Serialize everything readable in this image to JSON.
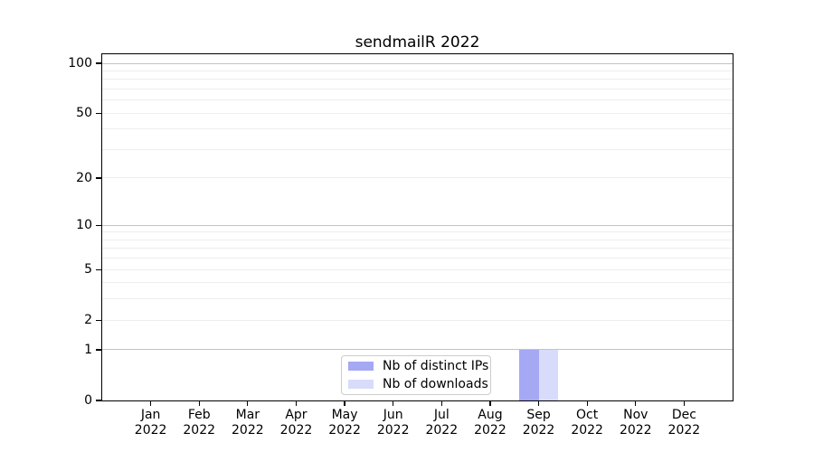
{
  "chart_data": {
    "type": "bar",
    "title": "sendmailR 2022",
    "year_label": "2022",
    "categories": [
      "Jan 2022",
      "Feb 2022",
      "Mar 2022",
      "Apr 2022",
      "May 2022",
      "Jun 2022",
      "Jul 2022",
      "Aug 2022",
      "Sep 2022",
      "Oct 2022",
      "Nov 2022",
      "Dec 2022"
    ],
    "month_labels": [
      "Jan",
      "Feb",
      "Mar",
      "Apr",
      "May",
      "Jun",
      "Jul",
      "Aug",
      "Sep",
      "Oct",
      "Nov",
      "Dec"
    ],
    "series": [
      {
        "name": "Nb of distinct IPs",
        "color": "#a5a8f3",
        "values": [
          0,
          0,
          0,
          0,
          0,
          0,
          0,
          0,
          1,
          0,
          0,
          0
        ]
      },
      {
        "name": "Nb of downloads",
        "color": "#d9dbfa",
        "values": [
          0,
          0,
          0,
          0,
          0,
          0,
          0,
          0,
          1,
          0,
          0,
          0
        ]
      }
    ],
    "xlabel": "",
    "ylabel": "",
    "y_axis": {
      "scale": "log1p",
      "tick_labels": [
        "0",
        "1",
        "2",
        "5",
        "10",
        "20",
        "50",
        "100"
      ],
      "tick_values": [
        0,
        1,
        2,
        5,
        10,
        20,
        50,
        100
      ],
      "major_grid_values": [
        1,
        10,
        100
      ],
      "minor_grid_values": [
        2,
        3,
        4,
        5,
        6,
        7,
        8,
        9,
        20,
        30,
        40,
        50,
        60,
        70,
        80,
        90
      ],
      "ylim": [
        0,
        113
      ]
    },
    "grid": true,
    "legend_position": "lower center",
    "colors": {
      "major_grid": "#c3c3c3",
      "minor_grid": "#ededed",
      "axis": "#000000",
      "text": "#000000",
      "background": "#ffffff"
    }
  }
}
